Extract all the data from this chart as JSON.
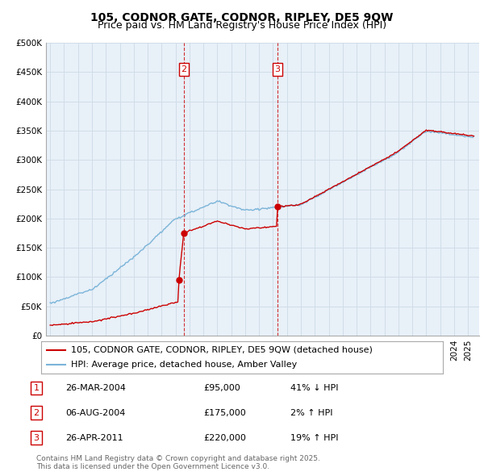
{
  "title": "105, CODNOR GATE, CODNOR, RIPLEY, DE5 9QW",
  "subtitle": "Price paid vs. HM Land Registry's House Price Index (HPI)",
  "ylim": [
    0,
    500000
  ],
  "yticks": [
    0,
    50000,
    100000,
    150000,
    200000,
    250000,
    300000,
    350000,
    400000,
    450000,
    500000
  ],
  "ytick_labels": [
    "£0",
    "£50K",
    "£100K",
    "£150K",
    "£200K",
    "£250K",
    "£300K",
    "£350K",
    "£400K",
    "£450K",
    "£500K"
  ],
  "hpi_color": "#7ab4d8",
  "price_color": "#cc0000",
  "grid_color": "#d0dde8",
  "bg_color": "#ffffff",
  "chart_bg_color": "#e8f0f8",
  "legend_label_price": "105, CODNOR GATE, CODNOR, RIPLEY, DE5 9QW (detached house)",
  "legend_label_hpi": "HPI: Average price, detached house, Amber Valley",
  "transactions": [
    {
      "num": 1,
      "date_str": "26-MAR-2004",
      "year": 2004.23,
      "price": 95000,
      "pct": "41%",
      "dir": "↓"
    },
    {
      "num": 2,
      "date_str": "06-AUG-2004",
      "year": 2004.6,
      "price": 175000,
      "pct": "2%",
      "dir": "↑"
    },
    {
      "num": 3,
      "date_str": "26-APR-2011",
      "year": 2011.32,
      "price": 220000,
      "pct": "19%",
      "dir": "↑"
    }
  ],
  "footer": "Contains HM Land Registry data © Crown copyright and database right 2025.\nThis data is licensed under the Open Government Licence v3.0.",
  "title_fontsize": 10,
  "subtitle_fontsize": 9,
  "tick_fontsize": 7.5,
  "legend_fontsize": 8,
  "footer_fontsize": 6.5
}
